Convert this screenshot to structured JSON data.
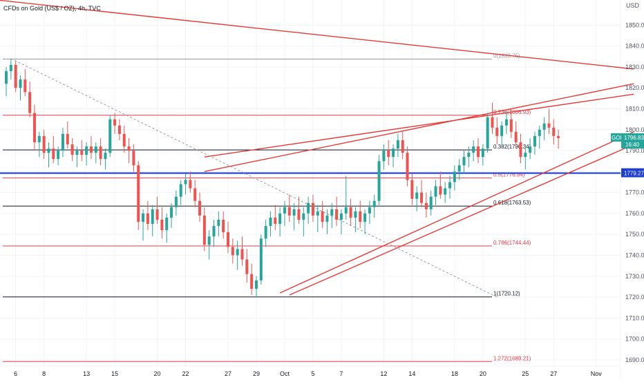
{
  "title": "CFDs on Gold (US$ / OZ), 4h, TVC",
  "currency": "USD",
  "colors": {
    "bull": "#26a69a",
    "bear": "#ef5350",
    "trendline": "#e53935",
    "fib_red": "#f23645",
    "fib_black": "#131722",
    "hline_blue": "#1e3fd0",
    "price_badge": "#26a69a",
    "blue_badge": "#1e3fd0"
  },
  "price_badge": {
    "symbol": "GOLD",
    "price": "1796.83",
    "countdown": "16:40"
  },
  "hline_badge": {
    "price": "1779.27"
  },
  "chart_data": {
    "type": "candlestick",
    "title": "CFDs on Gold (US$ / OZ), 4h, TVC",
    "y_axis": {
      "range": [
        1687,
        1862
      ],
      "ticks": [
        "1850.00",
        "1840.00",
        "1830.00",
        "1820.00",
        "1810.00",
        "1800.00",
        "1790.00",
        "1780.00",
        "1770.00",
        "1760.00",
        "1750.00",
        "1740.00",
        "1730.00",
        "1720.00",
        "1710.00",
        "1700.00",
        "1690.00"
      ],
      "tick_values": [
        1850,
        1840,
        1830,
        1820,
        1810,
        1800,
        1790,
        1780,
        1770,
        1760,
        1750,
        1740,
        1730,
        1720,
        1710,
        1700,
        1690
      ]
    },
    "x_axis": {
      "ticks": [
        "6",
        "8",
        "13",
        "15",
        "20",
        "22",
        "27",
        "29",
        "Oct",
        "5",
        "7",
        "12",
        "14",
        "18",
        "20",
        "25",
        "27",
        "Nov"
      ],
      "tick_index": [
        2,
        8,
        17,
        23,
        32,
        38,
        47,
        53,
        59,
        65,
        71,
        80,
        86,
        95,
        101,
        110,
        116,
        125
      ]
    },
    "candles": [
      [
        1822,
        1830,
        1816,
        1828
      ],
      [
        1828,
        1834,
        1824,
        1831
      ],
      [
        1831,
        1833,
        1818,
        1820
      ],
      [
        1820,
        1826,
        1814,
        1824
      ],
      [
        1824,
        1829,
        1816,
        1818
      ],
      [
        1818,
        1823,
        1806,
        1808
      ],
      [
        1808,
        1812,
        1790,
        1794
      ],
      [
        1794,
        1799,
        1787,
        1797
      ],
      [
        1797,
        1800,
        1786,
        1789
      ],
      [
        1789,
        1794,
        1782,
        1791
      ],
      [
        1791,
        1797,
        1784,
        1786
      ],
      [
        1786,
        1792,
        1783,
        1790
      ],
      [
        1790,
        1801,
        1787,
        1798
      ],
      [
        1798,
        1804,
        1791,
        1793
      ],
      [
        1793,
        1796,
        1785,
        1788
      ],
      [
        1788,
        1792,
        1782,
        1790
      ],
      [
        1790,
        1795,
        1785,
        1788
      ],
      [
        1788,
        1794,
        1783,
        1792
      ],
      [
        1792,
        1797,
        1786,
        1789
      ],
      [
        1789,
        1794,
        1784,
        1792
      ],
      [
        1792,
        1796,
        1783,
        1786
      ],
      [
        1786,
        1791,
        1781,
        1789
      ],
      [
        1789,
        1807,
        1787,
        1805
      ],
      [
        1805,
        1808,
        1798,
        1802
      ],
      [
        1802,
        1805,
        1795,
        1798
      ],
      [
        1798,
        1802,
        1789,
        1792
      ],
      [
        1792,
        1796,
        1784,
        1790
      ],
      [
        1790,
        1793,
        1780,
        1783
      ],
      [
        1783,
        1785,
        1752,
        1756
      ],
      [
        1756,
        1762,
        1747,
        1760
      ],
      [
        1760,
        1766,
        1752,
        1755
      ],
      [
        1755,
        1764,
        1749,
        1762
      ],
      [
        1762,
        1768,
        1755,
        1757
      ],
      [
        1757,
        1763,
        1748,
        1752
      ],
      [
        1752,
        1760,
        1746,
        1758
      ],
      [
        1758,
        1765,
        1753,
        1763
      ],
      [
        1763,
        1771,
        1759,
        1768
      ],
      [
        1768,
        1776,
        1764,
        1774
      ],
      [
        1774,
        1779,
        1769,
        1776
      ],
      [
        1776,
        1780,
        1770,
        1772
      ],
      [
        1772,
        1776,
        1763,
        1766
      ],
      [
        1766,
        1770,
        1756,
        1759
      ],
      [
        1759,
        1763,
        1742,
        1745
      ],
      [
        1745,
        1752,
        1738,
        1749
      ],
      [
        1749,
        1757,
        1744,
        1754
      ],
      [
        1754,
        1761,
        1749,
        1757
      ],
      [
        1757,
        1761,
        1748,
        1751
      ],
      [
        1751,
        1756,
        1741,
        1744
      ],
      [
        1744,
        1748,
        1736,
        1740
      ],
      [
        1740,
        1747,
        1733,
        1743
      ],
      [
        1743,
        1749,
        1735,
        1738
      ],
      [
        1738,
        1743,
        1727,
        1731
      ],
      [
        1731,
        1736,
        1721,
        1724
      ],
      [
        1724,
        1730,
        1720,
        1728
      ],
      [
        1728,
        1750,
        1726,
        1748
      ],
      [
        1748,
        1757,
        1744,
        1754
      ],
      [
        1754,
        1761,
        1749,
        1758
      ],
      [
        1758,
        1764,
        1752,
        1755
      ],
      [
        1755,
        1763,
        1749,
        1760
      ],
      [
        1760,
        1766,
        1754,
        1763
      ],
      [
        1763,
        1769,
        1756,
        1759
      ],
      [
        1759,
        1765,
        1752,
        1762
      ],
      [
        1762,
        1768,
        1755,
        1757
      ],
      [
        1757,
        1763,
        1749,
        1760
      ],
      [
        1760,
        1768,
        1755,
        1765
      ],
      [
        1765,
        1769,
        1756,
        1759
      ],
      [
        1759,
        1764,
        1751,
        1761
      ],
      [
        1761,
        1766,
        1753,
        1756
      ],
      [
        1756,
        1762,
        1750,
        1759
      ],
      [
        1759,
        1765,
        1753,
        1762
      ],
      [
        1762,
        1768,
        1754,
        1757
      ],
      [
        1757,
        1762,
        1750,
        1760
      ],
      [
        1760,
        1778,
        1757,
        1763
      ],
      [
        1763,
        1767,
        1754,
        1758
      ],
      [
        1758,
        1763,
        1751,
        1761
      ],
      [
        1761,
        1766,
        1753,
        1756
      ],
      [
        1756,
        1762,
        1750,
        1760
      ],
      [
        1760,
        1766,
        1755,
        1763
      ],
      [
        1763,
        1769,
        1758,
        1766
      ],
      [
        1766,
        1788,
        1764,
        1785
      ],
      [
        1785,
        1793,
        1781,
        1790
      ],
      [
        1790,
        1795,
        1783,
        1787
      ],
      [
        1787,
        1793,
        1782,
        1791
      ],
      [
        1791,
        1798,
        1787,
        1795
      ],
      [
        1795,
        1799,
        1786,
        1789
      ],
      [
        1789,
        1792,
        1773,
        1776
      ],
      [
        1776,
        1779,
        1764,
        1767
      ],
      [
        1767,
        1773,
        1761,
        1770
      ],
      [
        1770,
        1776,
        1763,
        1765
      ],
      [
        1765,
        1770,
        1758,
        1762
      ],
      [
        1762,
        1771,
        1759,
        1768
      ],
      [
        1768,
        1776,
        1764,
        1773
      ],
      [
        1773,
        1780,
        1767,
        1769
      ],
      [
        1769,
        1775,
        1765,
        1772
      ],
      [
        1772,
        1778,
        1767,
        1775
      ],
      [
        1775,
        1783,
        1771,
        1780
      ],
      [
        1780,
        1786,
        1776,
        1783
      ],
      [
        1783,
        1790,
        1779,
        1787
      ],
      [
        1787,
        1792,
        1782,
        1789
      ],
      [
        1789,
        1795,
        1785,
        1792
      ],
      [
        1792,
        1796,
        1784,
        1787
      ],
      [
        1787,
        1793,
        1783,
        1791
      ],
      [
        1791,
        1808,
        1789,
        1806
      ],
      [
        1806,
        1813,
        1798,
        1801
      ],
      [
        1801,
        1806,
        1793,
        1797
      ],
      [
        1797,
        1804,
        1792,
        1802
      ],
      [
        1802,
        1809,
        1798,
        1805
      ],
      [
        1805,
        1810,
        1796,
        1799
      ],
      [
        1799,
        1804,
        1791,
        1794
      ],
      [
        1794,
        1798,
        1784,
        1787
      ],
      [
        1787,
        1792,
        1781,
        1789
      ],
      [
        1789,
        1796,
        1786,
        1792
      ],
      [
        1792,
        1799,
        1788,
        1797
      ],
      [
        1797,
        1802,
        1791,
        1800
      ],
      [
        1800,
        1806,
        1795,
        1803
      ],
      [
        1803,
        1810,
        1798,
        1801
      ],
      [
        1801,
        1805,
        1793,
        1797
      ],
      [
        1797,
        1800,
        1791,
        1796
      ]
    ],
    "trendlines": [
      {
        "name": "upper-falling-line",
        "p1": [
          -4,
          1862.5
        ],
        "p2": [
          133,
          1829
        ]
      },
      {
        "name": "channel-upper-1",
        "p1": [
          42,
          1780
        ],
        "p2": [
          133,
          1822
        ]
      },
      {
        "name": "channel-upper-2",
        "p1": [
          42,
          1787
        ],
        "p2": [
          133,
          1817
        ]
      },
      {
        "name": "channel-lower-1",
        "p1": [
          58,
          1722
        ],
        "p2": [
          133,
          1799
        ]
      },
      {
        "name": "channel-lower-2",
        "p1": [
          60,
          1721
        ],
        "p2": [
          133,
          1793
        ]
      },
      {
        "name": "fib-diagonal",
        "p1": [
          1,
          1834
        ],
        "p2": [
          104,
          1720
        ],
        "dashed": true
      }
    ],
    "fib_levels": [
      {
        "ratio": "0",
        "price": 1833.75,
        "label": "0(1833.75)",
        "color": "gray"
      },
      {
        "ratio": "0.236",
        "price": 1806.93,
        "label": "0.236(1806.93)",
        "color": "red"
      },
      {
        "ratio": "0.382",
        "price": 1790.34,
        "label": "0.382(1790.34)",
        "color": "black"
      },
      {
        "ratio": "0.5",
        "price": 1776.94,
        "label": "0.5(1776.94)",
        "color": "red"
      },
      {
        "ratio": "0.618",
        "price": 1763.53,
        "label": "0.618(1763.53)",
        "color": "black"
      },
      {
        "ratio": "0.786",
        "price": 1744.44,
        "label": "0.786(1744.44)",
        "color": "red"
      },
      {
        "ratio": "1",
        "price": 1720.12,
        "label": "1(1720.12)",
        "color": "black"
      },
      {
        "ratio": "1.272",
        "price": 1689.21,
        "label": "1.272(1689.21)",
        "color": "red"
      }
    ],
    "horizontal_line": {
      "price": 1779.27,
      "color": "blue"
    }
  }
}
